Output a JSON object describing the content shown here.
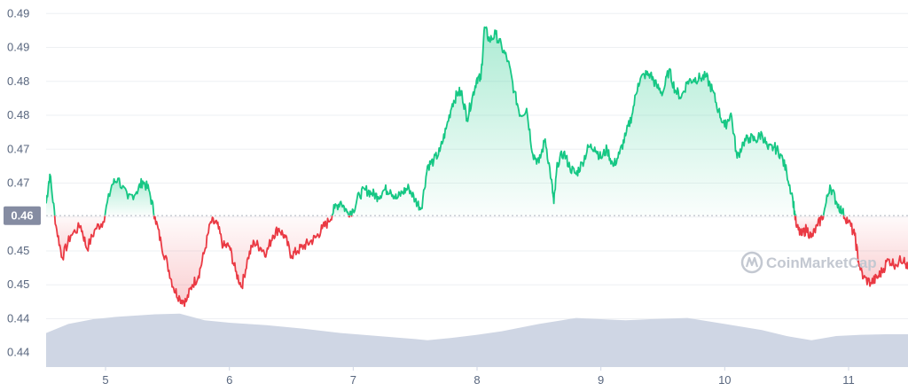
{
  "chart_data": {
    "type": "area",
    "y_ticks": [
      "0.49",
      "0.49",
      "0.48",
      "0.48",
      "0.47",
      "0.47",
      "0.46",
      "0.45",
      "0.45",
      "0.44",
      "0.44"
    ],
    "y_tick_values": [
      0.4925,
      0.4875,
      0.4825,
      0.4775,
      0.4725,
      0.4675,
      0.4625,
      0.4575,
      0.4525,
      0.4475,
      0.4425
    ],
    "x_ticks": [
      "5",
      "6",
      "7",
      "8",
      "9",
      "10",
      "11"
    ],
    "x_tick_values": [
      5,
      6,
      7,
      8,
      9,
      10,
      11
    ],
    "xlim": [
      4.52,
      11.48
    ],
    "ylim": [
      0.4405,
      0.4945
    ],
    "reference_price": 0.4627,
    "reference_label": "0.46",
    "grid": true,
    "colors": {
      "up": "#16c784",
      "down": "#ea3943",
      "volume": "#cfd6e4",
      "reference_line": "#b7bcc5",
      "price_tag": "#858ca2"
    },
    "series": [
      {
        "values": [
          [
            4.52,
            0.4645
          ],
          [
            4.55,
            0.4688
          ],
          [
            4.6,
            0.4612
          ],
          [
            4.65,
            0.4565
          ],
          [
            4.72,
            0.4598
          ],
          [
            4.8,
            0.4612
          ],
          [
            4.85,
            0.4578
          ],
          [
            4.92,
            0.4608
          ],
          [
            4.98,
            0.4618
          ],
          [
            5.05,
            0.4672
          ],
          [
            5.1,
            0.4682
          ],
          [
            5.18,
            0.4652
          ],
          [
            5.25,
            0.4662
          ],
          [
            5.3,
            0.4678
          ],
          [
            5.35,
            0.4665
          ],
          [
            5.4,
            0.4625
          ],
          [
            5.45,
            0.4585
          ],
          [
            5.5,
            0.4555
          ],
          [
            5.55,
            0.452
          ],
          [
            5.6,
            0.4505
          ],
          [
            5.65,
            0.45
          ],
          [
            5.7,
            0.4525
          ],
          [
            5.75,
            0.4538
          ],
          [
            5.8,
            0.4575
          ],
          [
            5.85,
            0.4618
          ],
          [
            5.9,
            0.4615
          ],
          [
            5.95,
            0.4582
          ],
          [
            6.0,
            0.4582
          ],
          [
            6.05,
            0.4545
          ],
          [
            6.1,
            0.4522
          ],
          [
            6.15,
            0.4565
          ],
          [
            6.2,
            0.4588
          ],
          [
            6.25,
            0.458
          ],
          [
            6.3,
            0.4572
          ],
          [
            6.35,
            0.4598
          ],
          [
            6.4,
            0.4608
          ],
          [
            6.45,
            0.4595
          ],
          [
            6.5,
            0.4568
          ],
          [
            6.55,
            0.4575
          ],
          [
            6.6,
            0.4582
          ],
          [
            6.65,
            0.4588
          ],
          [
            6.7,
            0.4595
          ],
          [
            6.75,
            0.4608
          ],
          [
            6.8,
            0.4618
          ],
          [
            6.85,
            0.4638
          ],
          [
            6.9,
            0.4648
          ],
          [
            6.95,
            0.4632
          ],
          [
            7.0,
            0.4635
          ],
          [
            7.05,
            0.4658
          ],
          [
            7.1,
            0.4665
          ],
          [
            7.15,
            0.466
          ],
          [
            7.2,
            0.4655
          ],
          [
            7.25,
            0.4665
          ],
          [
            7.3,
            0.4665
          ],
          [
            7.35,
            0.4652
          ],
          [
            7.4,
            0.4662
          ],
          [
            7.45,
            0.4668
          ],
          [
            7.5,
            0.465
          ],
          [
            7.55,
            0.4638
          ],
          [
            7.6,
            0.47
          ],
          [
            7.65,
            0.4708
          ],
          [
            7.7,
            0.4722
          ],
          [
            7.75,
            0.4755
          ],
          [
            7.8,
            0.4792
          ],
          [
            7.85,
            0.481
          ],
          [
            7.88,
            0.4805
          ],
          [
            7.92,
            0.477
          ],
          [
            7.96,
            0.48
          ],
          [
            8.0,
            0.483
          ],
          [
            8.03,
            0.4828
          ],
          [
            8.06,
            0.4905
          ],
          [
            8.1,
            0.4885
          ],
          [
            8.15,
            0.4895
          ],
          [
            8.2,
            0.4875
          ],
          [
            8.25,
            0.4855
          ],
          [
            8.3,
            0.481
          ],
          [
            8.35,
            0.4775
          ],
          [
            8.4,
            0.4785
          ],
          [
            8.45,
            0.4718
          ],
          [
            8.5,
            0.4705
          ],
          [
            8.55,
            0.474
          ],
          [
            8.6,
            0.468
          ],
          [
            8.62,
            0.4645
          ],
          [
            8.65,
            0.4705
          ],
          [
            8.7,
            0.472
          ],
          [
            8.75,
            0.4698
          ],
          [
            8.8,
            0.4688
          ],
          [
            8.85,
            0.4705
          ],
          [
            8.9,
            0.4728
          ],
          [
            8.95,
            0.4728
          ],
          [
            9.0,
            0.4712
          ],
          [
            9.05,
            0.4725
          ],
          [
            9.1,
            0.47
          ],
          [
            9.15,
            0.4718
          ],
          [
            9.2,
            0.4745
          ],
          [
            9.25,
            0.4775
          ],
          [
            9.3,
            0.4822
          ],
          [
            9.35,
            0.4835
          ],
          [
            9.4,
            0.4835
          ],
          [
            9.45,
            0.4818
          ],
          [
            9.5,
            0.4808
          ],
          [
            9.55,
            0.4842
          ],
          [
            9.6,
            0.4812
          ],
          [
            9.65,
            0.4802
          ],
          [
            9.7,
            0.4825
          ],
          [
            9.75,
            0.4828
          ],
          [
            9.8,
            0.483
          ],
          [
            9.85,
            0.4832
          ],
          [
            9.9,
            0.4812
          ],
          [
            9.95,
            0.4782
          ],
          [
            10.0,
            0.4758
          ],
          [
            10.05,
            0.4778
          ],
          [
            10.1,
            0.4712
          ],
          [
            10.15,
            0.4735
          ],
          [
            10.2,
            0.4742
          ],
          [
            10.25,
            0.4738
          ],
          [
            10.3,
            0.4748
          ],
          [
            10.35,
            0.4725
          ],
          [
            10.4,
            0.4728
          ],
          [
            10.45,
            0.4718
          ],
          [
            10.5,
            0.4692
          ],
          [
            10.55,
            0.4652
          ],
          [
            10.58,
            0.461
          ],
          [
            10.62,
            0.4598
          ],
          [
            10.66,
            0.4608
          ],
          [
            10.7,
            0.4595
          ],
          [
            10.75,
            0.4612
          ],
          [
            10.8,
            0.463
          ],
          [
            10.85,
            0.4672
          ],
          [
            10.9,
            0.4648
          ],
          [
            10.95,
            0.4632
          ],
          [
            11.0,
            0.4618
          ],
          [
            11.05,
            0.4598
          ],
          [
            11.08,
            0.456
          ],
          [
            11.12,
            0.4535
          ],
          [
            11.18,
            0.4528
          ],
          [
            11.23,
            0.4535
          ],
          [
            11.27,
            0.4545
          ],
          [
            11.32,
            0.4562
          ],
          [
            11.38,
            0.4555
          ],
          [
            11.45,
            0.4565
          ],
          [
            11.48,
            0.4548
          ]
        ]
      }
    ],
    "volume_series": {
      "note_units": "relative",
      "values": [
        [
          4.52,
          0.55
        ],
        [
          4.7,
          0.7
        ],
        [
          4.9,
          0.78
        ],
        [
          5.1,
          0.82
        ],
        [
          5.4,
          0.86
        ],
        [
          5.6,
          0.87
        ],
        [
          5.8,
          0.76
        ],
        [
          6.0,
          0.72
        ],
        [
          6.3,
          0.68
        ],
        [
          6.6,
          0.62
        ],
        [
          6.9,
          0.55
        ],
        [
          7.2,
          0.5
        ],
        [
          7.5,
          0.45
        ],
        [
          7.6,
          0.43
        ],
        [
          7.8,
          0.47
        ],
        [
          8.0,
          0.52
        ],
        [
          8.2,
          0.58
        ],
        [
          8.5,
          0.7
        ],
        [
          8.8,
          0.8
        ],
        [
          9.0,
          0.78
        ],
        [
          9.2,
          0.76
        ],
        [
          9.4,
          0.78
        ],
        [
          9.7,
          0.8
        ],
        [
          10.0,
          0.7
        ],
        [
          10.3,
          0.6
        ],
        [
          10.5,
          0.5
        ],
        [
          10.7,
          0.43
        ],
        [
          10.9,
          0.5
        ],
        [
          11.1,
          0.52
        ],
        [
          11.3,
          0.53
        ],
        [
          11.48,
          0.53
        ]
      ]
    },
    "watermark": "CoinMarketCap"
  }
}
